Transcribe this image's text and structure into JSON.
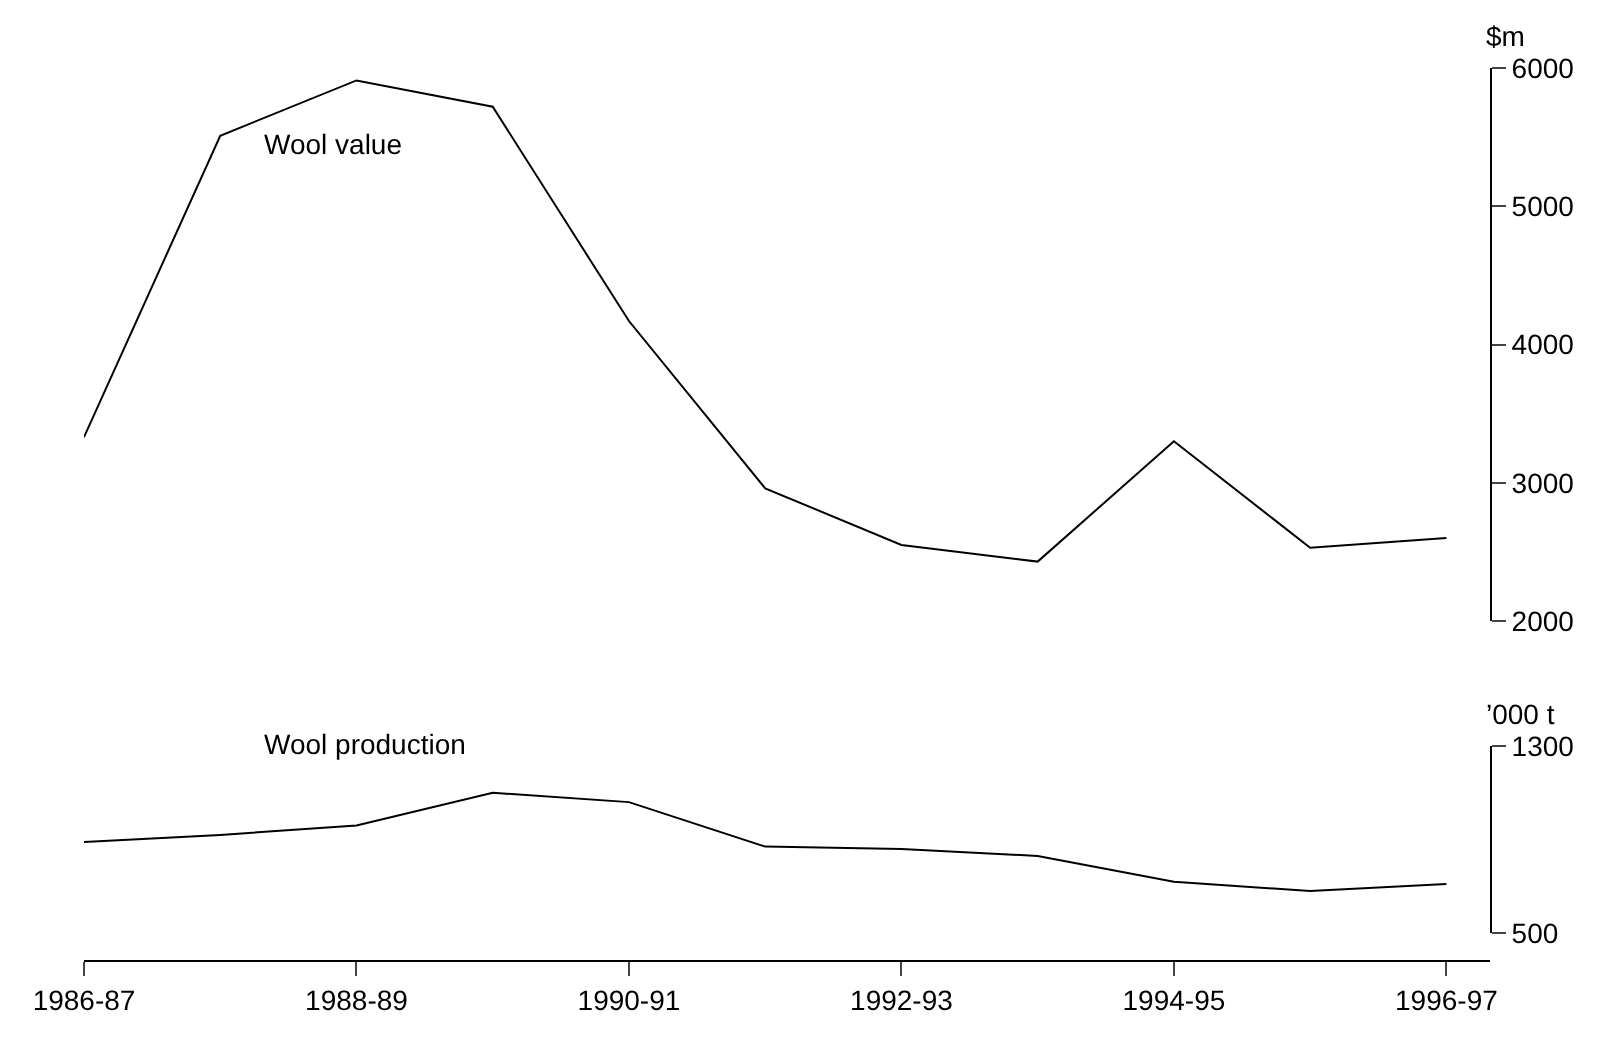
{
  "chart_data": [
    {
      "type": "line",
      "ylabel": "$m",
      "tick_labels": "y",
      "legend": false,
      "categories": [
        "1986-87",
        null,
        "1988-89",
        null,
        "1990-91",
        null,
        "1992-93",
        null,
        "1994-95",
        null,
        "1996-97"
      ],
      "series": [
        {
          "name": "Wool value",
          "color": "#000000",
          "values": [
            3330,
            5510,
            5910,
            5720,
            4170,
            2960,
            2550,
            2430,
            3300,
            2530,
            2600
          ]
        }
      ],
      "ylim": [
        2000,
        6000
      ],
      "yticks": [
        2000,
        3000,
        4000,
        5000,
        6000
      ]
    },
    {
      "type": "line",
      "ylabel": "’000 t",
      "legend": false,
      "categories": [
        "1986-87",
        null,
        "1988-89",
        null,
        "1990-91",
        null,
        "1992-93",
        null,
        "1994-95",
        null,
        "1996-97"
      ],
      "series": [
        {
          "name": "Wool production",
          "color": "#000000",
          "values": [
            890,
            920,
            960,
            1100,
            1060,
            870,
            860,
            830,
            720,
            680,
            710
          ]
        }
      ],
      "ylim": [
        500,
        1300
      ],
      "yticks": [
        500,
        1300
      ]
    }
  ]
}
